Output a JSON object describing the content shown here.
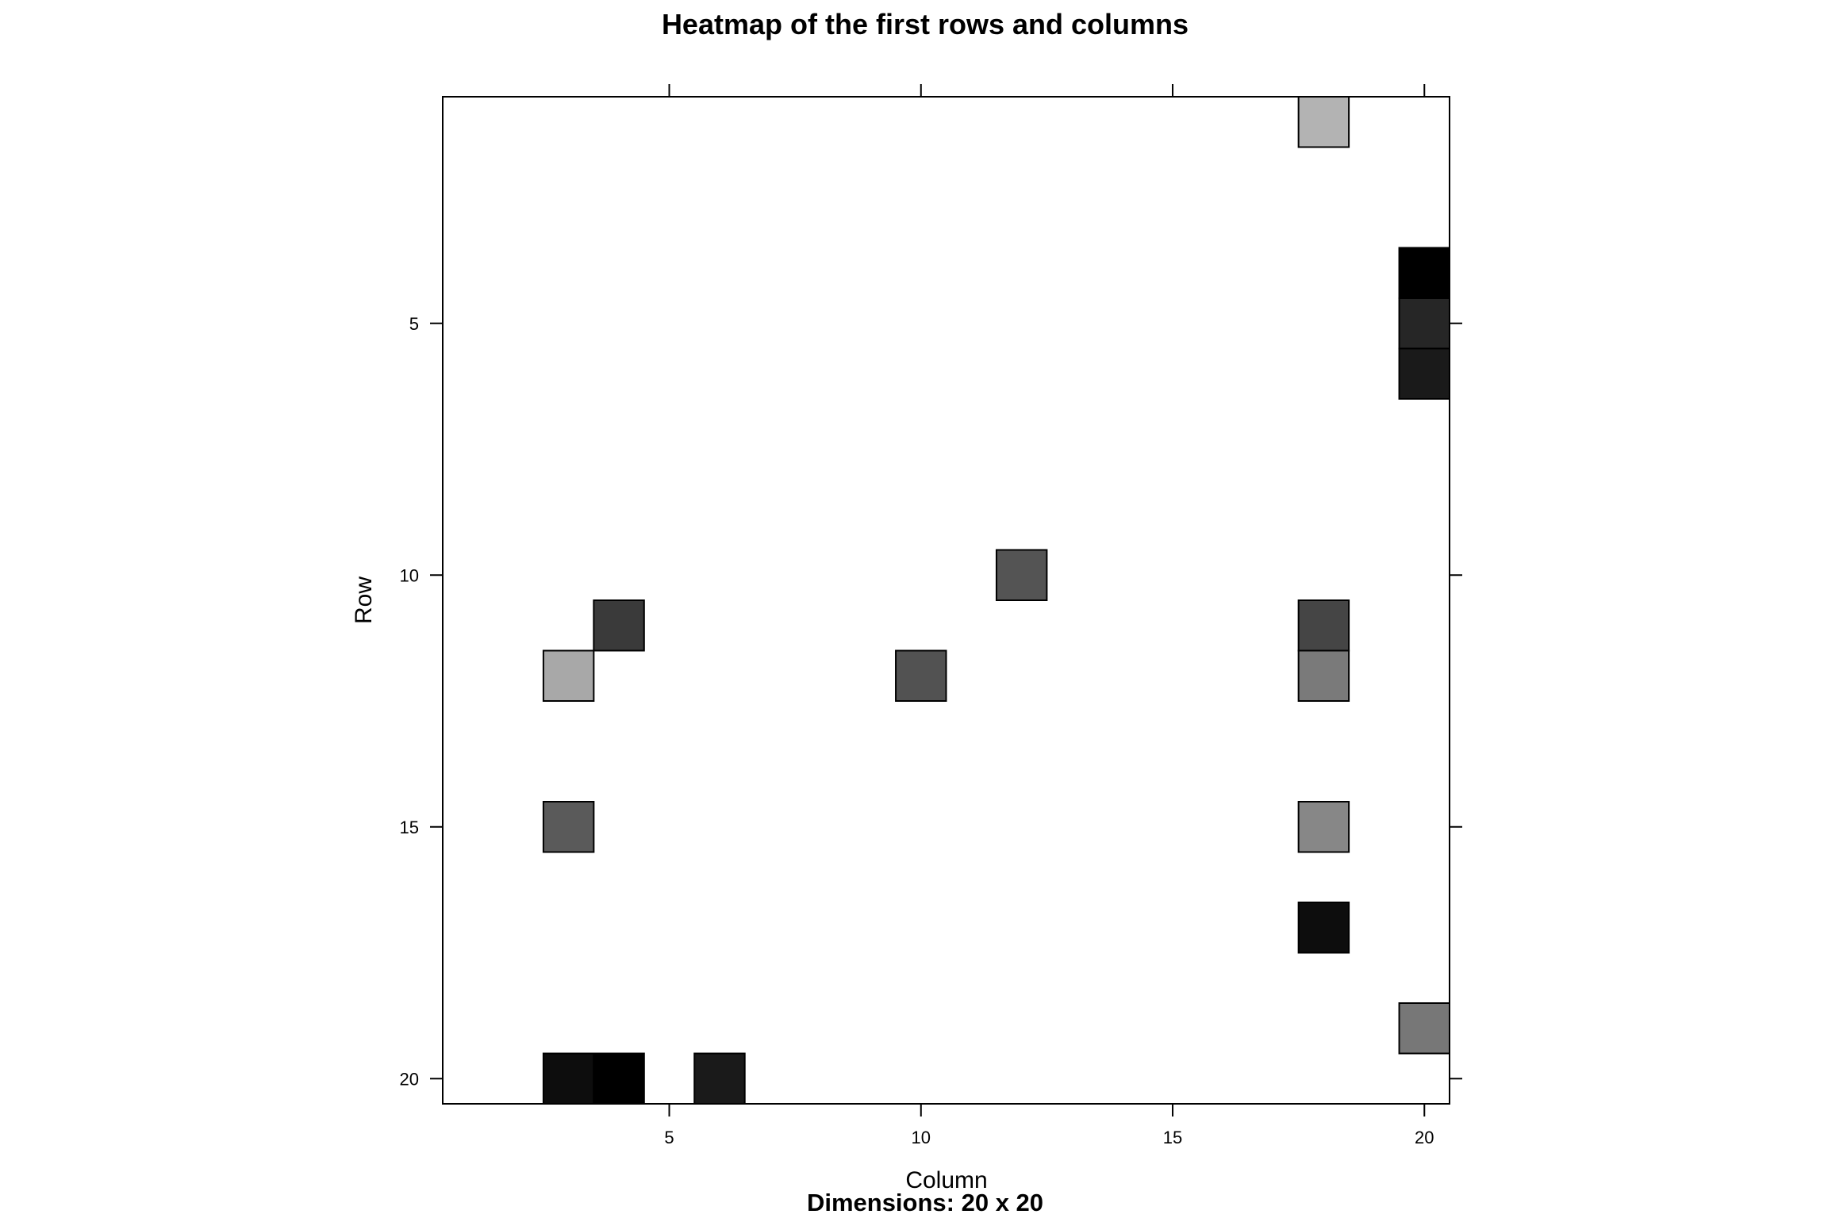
{
  "chart_data": {
    "type": "heatmap",
    "title": "Heatmap of the first rows and columns",
    "xlabel": "Column",
    "ylabel": "Row",
    "subtitle": "Dimensions: 20 x 20",
    "xlim": [
      0.5,
      20.5
    ],
    "ylim": [
      0.5,
      20.5
    ],
    "y_reversed": true,
    "x_ticks": [
      5,
      10,
      15,
      20
    ],
    "y_ticks": [
      5,
      10,
      15,
      20
    ],
    "x_tick_labels": [
      "5",
      "10",
      "15",
      "20"
    ],
    "y_tick_labels": [
      "5",
      "10",
      "15",
      "20"
    ],
    "colormap": "grayscale (darker = higher)",
    "cells": [
      {
        "row": 1,
        "col": 18,
        "color": "#b3b3b3"
      },
      {
        "row": 4,
        "col": 20,
        "color": "#000000"
      },
      {
        "row": 5,
        "col": 20,
        "color": "#262626"
      },
      {
        "row": 6,
        "col": 20,
        "color": "#1a1a1a"
      },
      {
        "row": 10,
        "col": 12,
        "color": "#545454"
      },
      {
        "row": 11,
        "col": 4,
        "color": "#3a3a3a"
      },
      {
        "row": 11,
        "col": 18,
        "color": "#454545"
      },
      {
        "row": 12,
        "col": 3,
        "color": "#a8a8a8"
      },
      {
        "row": 12,
        "col": 10,
        "color": "#525252"
      },
      {
        "row": 12,
        "col": 18,
        "color": "#7a7a7a"
      },
      {
        "row": 15,
        "col": 3,
        "color": "#5a5a5a"
      },
      {
        "row": 15,
        "col": 18,
        "color": "#878787"
      },
      {
        "row": 17,
        "col": 18,
        "color": "#0d0d0d"
      },
      {
        "row": 19,
        "col": 20,
        "color": "#777777"
      },
      {
        "row": 20,
        "col": 3,
        "color": "#0d0d0d"
      },
      {
        "row": 20,
        "col": 4,
        "color": "#000000"
      },
      {
        "row": 20,
        "col": 6,
        "color": "#1a1a1a"
      }
    ]
  }
}
